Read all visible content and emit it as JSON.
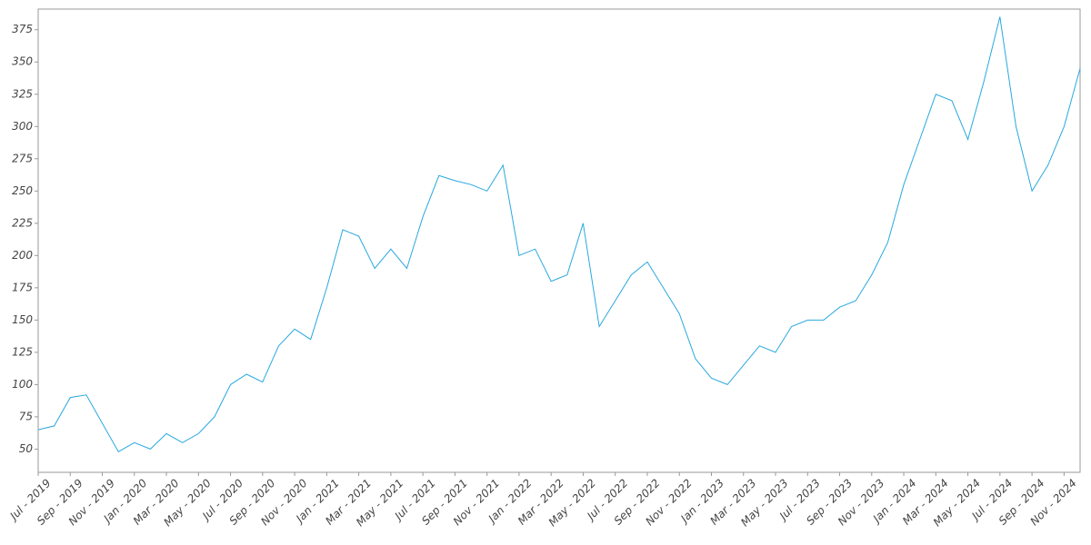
{
  "chart_data": {
    "type": "line",
    "x": [
      "2019-07",
      "2019-08",
      "2019-09",
      "2019-10",
      "2019-11",
      "2019-12",
      "2020-01",
      "2020-02",
      "2020-03",
      "2020-04",
      "2020-05",
      "2020-06",
      "2020-07",
      "2020-08",
      "2020-09",
      "2020-10",
      "2020-11",
      "2020-12",
      "2021-01",
      "2021-02",
      "2021-03",
      "2021-04",
      "2021-05",
      "2021-06",
      "2021-07",
      "2021-08",
      "2021-09",
      "2021-10",
      "2021-11",
      "2021-12",
      "2022-01",
      "2022-02",
      "2022-03",
      "2022-04",
      "2022-05",
      "2022-06",
      "2022-07",
      "2022-08",
      "2022-09",
      "2022-10",
      "2022-11",
      "2022-12",
      "2023-01",
      "2023-02",
      "2023-03",
      "2023-04",
      "2023-05",
      "2023-06",
      "2023-07",
      "2023-08",
      "2023-09",
      "2023-10",
      "2023-11",
      "2023-12",
      "2024-01",
      "2024-02",
      "2024-03",
      "2024-04",
      "2024-05",
      "2024-06",
      "2024-07",
      "2024-08",
      "2024-09",
      "2024-10",
      "2024-11",
      "2024-12"
    ],
    "series": [
      {
        "color": "#29a8e0",
        "values": [
          65,
          68,
          90,
          92,
          70,
          48,
          55,
          50,
          62,
          55,
          62,
          75,
          100,
          108,
          102,
          130,
          143,
          135,
          175,
          220,
          215,
          190,
          205,
          190,
          230,
          262,
          258,
          255,
          250,
          270,
          200,
          205,
          180,
          185,
          225,
          145,
          165,
          185,
          195,
          175,
          155,
          120,
          105,
          100,
          115,
          130,
          125,
          145,
          150,
          150,
          160,
          165,
          185,
          210,
          255,
          290,
          325,
          320,
          290,
          335,
          385,
          300,
          250,
          270,
          300,
          345
        ]
      }
    ],
    "xlim": [
      "2019-07",
      "2024-12"
    ],
    "xticks": [
      {
        "value": "2019-07",
        "label": "Jul - 2019"
      },
      {
        "value": "2019-09",
        "label": "Sep - 2019"
      },
      {
        "value": "2019-11",
        "label": "Nov - 2019"
      },
      {
        "value": "2020-01",
        "label": "Jan - 2020"
      },
      {
        "value": "2020-03",
        "label": "Mar - 2020"
      },
      {
        "value": "2020-05",
        "label": "May - 2020"
      },
      {
        "value": "2020-07",
        "label": "Jul - 2020"
      },
      {
        "value": "2020-09",
        "label": "Sep - 2020"
      },
      {
        "value": "2020-11",
        "label": "Nov - 2020"
      },
      {
        "value": "2021-01",
        "label": "Jan - 2021"
      },
      {
        "value": "2021-03",
        "label": "Mar - 2021"
      },
      {
        "value": "2021-05",
        "label": "May - 2021"
      },
      {
        "value": "2021-07",
        "label": "Jul - 2021"
      },
      {
        "value": "2021-09",
        "label": "Sep - 2021"
      },
      {
        "value": "2021-11",
        "label": "Nov - 2021"
      },
      {
        "value": "2022-01",
        "label": "Jan - 2022"
      },
      {
        "value": "2022-03",
        "label": "Mar - 2022"
      },
      {
        "value": "2022-05",
        "label": "May - 2022"
      },
      {
        "value": "2022-07",
        "label": "Jul - 2022"
      },
      {
        "value": "2022-09",
        "label": "Sep - 2022"
      },
      {
        "value": "2022-11",
        "label": "Nov - 2022"
      },
      {
        "value": "2023-01",
        "label": "Jan - 2023"
      },
      {
        "value": "2023-03",
        "label": "Mar - 2023"
      },
      {
        "value": "2023-05",
        "label": "May - 2023"
      },
      {
        "value": "2023-07",
        "label": "Jul - 2023"
      },
      {
        "value": "2023-09",
        "label": "Sep - 2023"
      },
      {
        "value": "2023-11",
        "label": "Nov - 2023"
      },
      {
        "value": "2024-01",
        "label": "Jan - 2024"
      },
      {
        "value": "2024-03",
        "label": "Mar - 2024"
      },
      {
        "value": "2024-05",
        "label": "May - 2024"
      },
      {
        "value": "2024-07",
        "label": "Jul - 2024"
      },
      {
        "value": "2024-09",
        "label": "Sep - 2024"
      },
      {
        "value": "2024-11",
        "label": "Nov - 2024"
      }
    ],
    "ylim": [
      32,
      391
    ],
    "yticks": [
      50,
      75,
      100,
      125,
      150,
      175,
      200,
      225,
      250,
      275,
      300,
      325,
      350,
      375
    ]
  }
}
